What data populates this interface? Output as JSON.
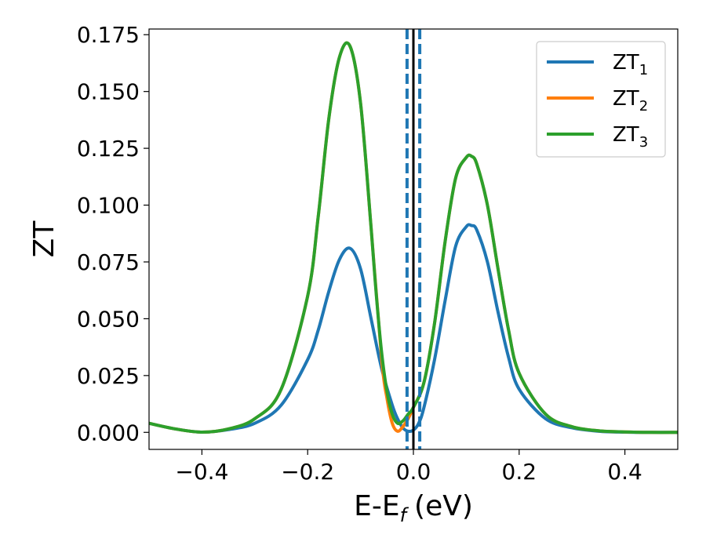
{
  "chart_data": {
    "type": "line",
    "title": "",
    "xlabel": "E-E",
    "xlabel_sub": "f",
    "xlabel_unit": "(eV)",
    "ylabel": "ZT",
    "xlim": [
      -0.5,
      0.5
    ],
    "ylim": [
      -0.0075,
      0.1775
    ],
    "grid": false,
    "legend_position": "top-right",
    "xticks": [
      -0.4,
      -0.2,
      0.0,
      0.2,
      0.4
    ],
    "xtick_labels": [
      "−0.4",
      "−0.2",
      "0.0",
      "0.2",
      "0.4"
    ],
    "yticks": [
      0.0,
      0.025,
      0.05,
      0.075,
      0.1,
      0.125,
      0.15,
      0.175
    ],
    "ytick_labels": [
      "0.000",
      "0.025",
      "0.050",
      "0.075",
      "0.100",
      "0.125",
      "0.150",
      "0.175"
    ],
    "series": [
      {
        "name": "ZT",
        "name_sub": "1",
        "color": "#1f77b4",
        "x": [
          -0.5,
          -0.45,
          -0.4,
          -0.35,
          -0.3,
          -0.25,
          -0.2,
          -0.18,
          -0.16,
          -0.14,
          -0.12,
          -0.1,
          -0.08,
          -0.06,
          -0.04,
          -0.03,
          -0.02,
          -0.01,
          0.0,
          0.01,
          0.02,
          0.04,
          0.06,
          0.08,
          0.1,
          0.11,
          0.12,
          0.14,
          0.16,
          0.18,
          0.2,
          0.25,
          0.3,
          0.35,
          0.4,
          0.45,
          0.5
        ],
        "y": [
          0.004,
          0.0015,
          0.0001,
          0.0012,
          0.004,
          0.012,
          0.032,
          0.045,
          0.062,
          0.076,
          0.081,
          0.072,
          0.05,
          0.028,
          0.012,
          0.006,
          0.002,
          0.0005,
          0.001,
          0.004,
          0.011,
          0.032,
          0.058,
          0.082,
          0.0905,
          0.091,
          0.089,
          0.075,
          0.053,
          0.033,
          0.019,
          0.006,
          0.002,
          0.0005,
          0.0001,
          0.0,
          0.0
        ]
      },
      {
        "name": "ZT",
        "name_sub": "2",
        "color": "#ff7f0e",
        "x": [
          -0.5,
          -0.45,
          -0.4,
          -0.35,
          -0.3,
          -0.25,
          -0.2,
          -0.18,
          -0.16,
          -0.14,
          -0.12,
          -0.1,
          -0.08,
          -0.06,
          -0.05,
          -0.04,
          -0.03,
          -0.02,
          -0.01,
          0.0,
          0.02,
          0.04,
          0.06,
          0.08,
          0.1,
          0.11,
          0.12,
          0.14,
          0.16,
          0.18,
          0.2,
          0.25,
          0.3,
          0.35,
          0.4,
          0.45,
          0.5
        ],
        "y": [
          0.004,
          0.0015,
          0.0001,
          0.0015,
          0.006,
          0.019,
          0.06,
          0.095,
          0.138,
          0.165,
          0.17,
          0.145,
          0.09,
          0.032,
          0.015,
          0.004,
          0.0005,
          0.0025,
          0.006,
          0.011,
          0.022,
          0.048,
          0.084,
          0.112,
          0.121,
          0.1215,
          0.118,
          0.1,
          0.072,
          0.045,
          0.026,
          0.008,
          0.0025,
          0.0007,
          0.0002,
          0.0,
          0.0
        ]
      },
      {
        "name": "ZT",
        "name_sub": "3",
        "color": "#2ca02c",
        "x": [
          -0.5,
          -0.45,
          -0.4,
          -0.35,
          -0.3,
          -0.25,
          -0.2,
          -0.18,
          -0.16,
          -0.14,
          -0.12,
          -0.1,
          -0.08,
          -0.07,
          -0.06,
          -0.05,
          -0.04,
          -0.03,
          -0.02,
          -0.01,
          0.0,
          0.02,
          0.04,
          0.06,
          0.08,
          0.1,
          0.11,
          0.12,
          0.14,
          0.16,
          0.18,
          0.2,
          0.25,
          0.3,
          0.35,
          0.4,
          0.45,
          0.5
        ],
        "y": [
          0.004,
          0.0015,
          0.0001,
          0.0015,
          0.006,
          0.019,
          0.06,
          0.095,
          0.138,
          0.165,
          0.17,
          0.145,
          0.09,
          0.06,
          0.035,
          0.018,
          0.008,
          0.004,
          0.005,
          0.008,
          0.011,
          0.022,
          0.048,
          0.084,
          0.112,
          0.121,
          0.1215,
          0.118,
          0.1,
          0.072,
          0.045,
          0.026,
          0.008,
          0.0025,
          0.0007,
          0.0002,
          0.0,
          0.0
        ]
      }
    ],
    "vlines": [
      {
        "x": 0.0,
        "color": "#000000",
        "style": "solid"
      },
      {
        "x": -0.012,
        "color": "#1f77b4",
        "style": "dashed"
      },
      {
        "x": 0.012,
        "color": "#1f77b4",
        "style": "dashed"
      }
    ]
  }
}
